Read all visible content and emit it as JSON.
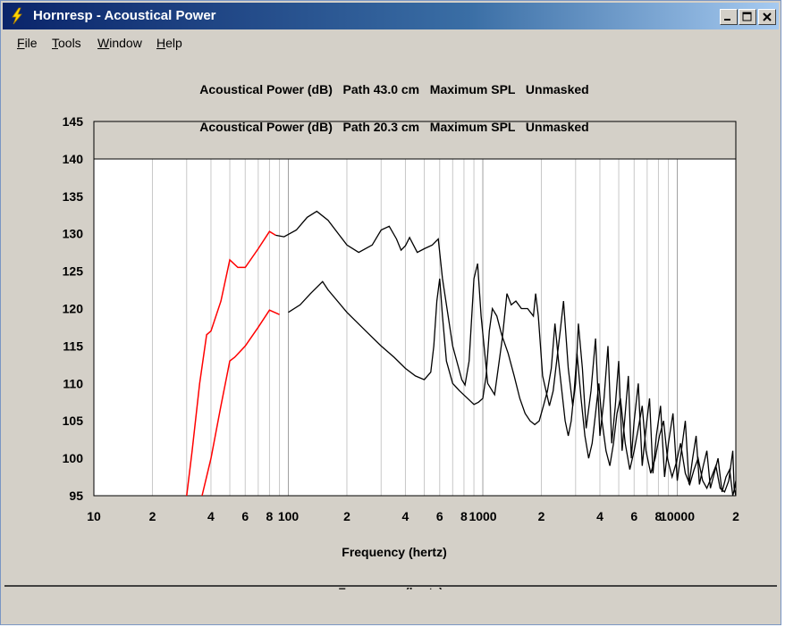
{
  "window": {
    "title": "Hornresp - Acoustical Power",
    "icon": "lightning-bolt-icon",
    "controls": [
      "minimize-icon",
      "maximize-icon",
      "close-icon"
    ]
  },
  "menu": [
    {
      "label": "File",
      "accel": "F"
    },
    {
      "label": "Tools",
      "accel": "T"
    },
    {
      "label": "Window",
      "accel": "W"
    },
    {
      "label": "Help",
      "accel": "H"
    }
  ],
  "chart_data": {
    "type": "line",
    "titles": [
      "Acoustical Power (dB)   Path 43.0 cm   Maximum SPL   Unmasked",
      "Acoustical Power (dB)   Path 20.3 cm   Maximum SPL   Unmasked"
    ],
    "xlabel": "Frequency (hertz)",
    "x_scale": "log",
    "xlim": [
      10,
      20000
    ],
    "ylim": [
      95,
      145
    ],
    "yticks": [
      145,
      140,
      135,
      130,
      125,
      120,
      115,
      110,
      105,
      100,
      95
    ],
    "xtick_labels": [
      {
        "x": 10,
        "label": "10"
      },
      {
        "x": 20,
        "label": "2"
      },
      {
        "x": 40,
        "label": "4"
      },
      {
        "x": 60,
        "label": "6"
      },
      {
        "x": 80,
        "label": "8"
      },
      {
        "x": 100,
        "label": "100"
      },
      {
        "x": 200,
        "label": "2"
      },
      {
        "x": 400,
        "label": "4"
      },
      {
        "x": 600,
        "label": "6"
      },
      {
        "x": 800,
        "label": "8"
      },
      {
        "x": 1000,
        "label": "1000"
      },
      {
        "x": 2000,
        "label": "2"
      },
      {
        "x": 4000,
        "label": "4"
      },
      {
        "x": 6000,
        "label": "6"
      },
      {
        "x": 8000,
        "label": "8"
      },
      {
        "x": 10000,
        "label": "10000"
      },
      {
        "x": 20000,
        "label": "2"
      }
    ],
    "grid": true,
    "colors": {
      "highlight": "#ff0000",
      "trace": "#000000",
      "grid": "#c8c8c8"
    },
    "series": [
      {
        "highlight_x": [
          30,
          86
        ],
        "points": [
          [
            30,
            95
          ],
          [
            32,
            101
          ],
          [
            35,
            110
          ],
          [
            38,
            116.5
          ],
          [
            40,
            117
          ],
          [
            45,
            121
          ],
          [
            50,
            126.5
          ],
          [
            55,
            125.5
          ],
          [
            60,
            125.5
          ],
          [
            70,
            128
          ],
          [
            80,
            130.3
          ],
          [
            86,
            129.8
          ],
          [
            95,
            129.6
          ],
          [
            110,
            130.5
          ],
          [
            125,
            132.2
          ],
          [
            140,
            133
          ],
          [
            160,
            131.8
          ],
          [
            200,
            128.5
          ],
          [
            230,
            127.5
          ],
          [
            270,
            128.5
          ],
          [
            300,
            130.5
          ],
          [
            330,
            131
          ],
          [
            360,
            129.3
          ],
          [
            380,
            127.8
          ],
          [
            400,
            128.4
          ],
          [
            420,
            129.5
          ],
          [
            460,
            127.5
          ],
          [
            500,
            128
          ],
          [
            550,
            128.5
          ],
          [
            590,
            129.3
          ],
          [
            620,
            124
          ],
          [
            700,
            115
          ],
          [
            780,
            110.5
          ],
          [
            810,
            109.8
          ],
          [
            850,
            113
          ],
          [
            900,
            124
          ],
          [
            940,
            126
          ],
          [
            980,
            119
          ],
          [
            1060,
            110
          ],
          [
            1150,
            108.5
          ],
          [
            1260,
            116
          ],
          [
            1330,
            122
          ],
          [
            1400,
            120.5
          ],
          [
            1480,
            121
          ],
          [
            1580,
            120
          ],
          [
            1700,
            120
          ],
          [
            1820,
            119
          ],
          [
            1870,
            122
          ],
          [
            1930,
            119
          ],
          [
            2030,
            111
          ],
          [
            2200,
            107
          ],
          [
            2300,
            109
          ],
          [
            2500,
            117
          ],
          [
            2600,
            121
          ],
          [
            2750,
            112
          ],
          [
            2900,
            107
          ],
          [
            3000,
            110
          ],
          [
            3100,
            118
          ],
          [
            3250,
            112
          ],
          [
            3400,
            104
          ],
          [
            3600,
            109
          ],
          [
            3800,
            116
          ],
          [
            4000,
            103
          ],
          [
            4200,
            108
          ],
          [
            4400,
            115
          ],
          [
            4600,
            102
          ],
          [
            4800,
            107
          ],
          [
            5000,
            113
          ],
          [
            5200,
            101
          ],
          [
            5400,
            106
          ],
          [
            5600,
            111
          ],
          [
            5800,
            100
          ],
          [
            6000,
            105
          ],
          [
            6300,
            110
          ],
          [
            6600,
            99
          ],
          [
            6900,
            104
          ],
          [
            7200,
            108
          ],
          [
            7500,
            98
          ],
          [
            7800,
            103
          ],
          [
            8200,
            107
          ],
          [
            8600,
            97.5
          ],
          [
            9000,
            102
          ],
          [
            9500,
            106
          ],
          [
            10000,
            97
          ],
          [
            10500,
            101
          ],
          [
            11000,
            105
          ],
          [
            11500,
            96.5
          ],
          [
            12000,
            100
          ],
          [
            12500,
            103
          ],
          [
            13000,
            96.5
          ],
          [
            13600,
            99
          ],
          [
            14200,
            101
          ],
          [
            14800,
            96
          ],
          [
            15500,
            98
          ],
          [
            16200,
            100
          ],
          [
            17000,
            95.5
          ],
          [
            17800,
            97.5
          ],
          [
            18600,
            98.5
          ],
          [
            19300,
            95
          ],
          [
            19700,
            96
          ],
          [
            20000,
            97
          ]
        ]
      },
      {
        "highlight_x": [
          36,
          95
        ],
        "points": [
          [
            36,
            95
          ],
          [
            40,
            100
          ],
          [
            45,
            107
          ],
          [
            50,
            113
          ],
          [
            53,
            113.5
          ],
          [
            60,
            115
          ],
          [
            70,
            117.5
          ],
          [
            80,
            119.8
          ],
          [
            90,
            119.2
          ],
          [
            100,
            119.5
          ],
          [
            115,
            120.5
          ],
          [
            130,
            122
          ],
          [
            150,
            123.6
          ],
          [
            160,
            122.5
          ],
          [
            200,
            119.5
          ],
          [
            250,
            117
          ],
          [
            300,
            115
          ],
          [
            350,
            113.5
          ],
          [
            400,
            112
          ],
          [
            450,
            111
          ],
          [
            500,
            110.5
          ],
          [
            540,
            111.5
          ],
          [
            560,
            115
          ],
          [
            580,
            121
          ],
          [
            600,
            124
          ],
          [
            620,
            119
          ],
          [
            650,
            113
          ],
          [
            700,
            110
          ],
          [
            760,
            109
          ],
          [
            850,
            107.8
          ],
          [
            900,
            107.2
          ],
          [
            950,
            107.5
          ],
          [
            1000,
            108
          ],
          [
            1040,
            111
          ],
          [
            1080,
            117
          ],
          [
            1120,
            120
          ],
          [
            1180,
            119
          ],
          [
            1250,
            116.5
          ],
          [
            1350,
            114
          ],
          [
            1450,
            111
          ],
          [
            1550,
            108
          ],
          [
            1650,
            106
          ],
          [
            1750,
            105
          ],
          [
            1850,
            104.5
          ],
          [
            1950,
            105
          ],
          [
            2050,
            107
          ],
          [
            2150,
            109
          ],
          [
            2250,
            112
          ],
          [
            2350,
            118
          ],
          [
            2450,
            113
          ],
          [
            2550,
            109
          ],
          [
            2650,
            105
          ],
          [
            2750,
            103
          ],
          [
            2850,
            105
          ],
          [
            2950,
            109
          ],
          [
            3050,
            114
          ],
          [
            3200,
            108
          ],
          [
            3350,
            103
          ],
          [
            3500,
            100
          ],
          [
            3650,
            102
          ],
          [
            3800,
            106
          ],
          [
            3950,
            110
          ],
          [
            4100,
            105
          ],
          [
            4300,
            101
          ],
          [
            4500,
            99
          ],
          [
            4700,
            102
          ],
          [
            4900,
            106
          ],
          [
            5100,
            108
          ],
          [
            5400,
            102
          ],
          [
            5700,
            98.5
          ],
          [
            6000,
            101
          ],
          [
            6300,
            104
          ],
          [
            6600,
            107
          ],
          [
            6900,
            101
          ],
          [
            7300,
            98
          ],
          [
            7700,
            100
          ],
          [
            8100,
            103
          ],
          [
            8500,
            105
          ],
          [
            8900,
            100
          ],
          [
            9400,
            97.5
          ],
          [
            9900,
            99.5
          ],
          [
            10400,
            102
          ],
          [
            11000,
            98
          ],
          [
            11600,
            96.5
          ],
          [
            12200,
            98.5
          ],
          [
            12800,
            100
          ],
          [
            13500,
            97
          ],
          [
            14200,
            96
          ],
          [
            15000,
            97.5
          ],
          [
            15800,
            99
          ],
          [
            16600,
            96
          ],
          [
            17500,
            95.5
          ],
          [
            18400,
            97
          ],
          [
            19300,
            101
          ],
          [
            19600,
            96
          ],
          [
            20000,
            95
          ]
        ]
      }
    ]
  }
}
